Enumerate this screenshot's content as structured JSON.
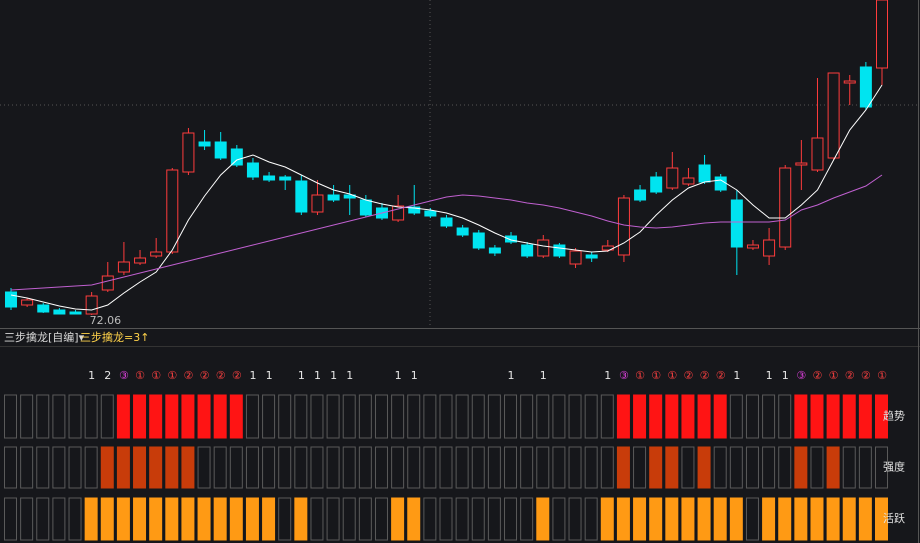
{
  "chart_data": {
    "type": "candlestick",
    "open": [
      74.36,
      73.06,
      73.06,
      72.56,
      72.36,
      72.16,
      74.56,
      76.36,
      77.26,
      77.96,
      78.36,
      86.36,
      89.36,
      89.36,
      88.66,
      87.26,
      85.96,
      85.86,
      85.46,
      82.36,
      84.06,
      84.06,
      83.56,
      82.76,
      81.56,
      82.86,
      82.46,
      81.76,
      80.76,
      80.26,
      78.76,
      79.96,
      79.06,
      77.96,
      79.06,
      77.16,
      78.06,
      78.56,
      78.06,
      84.56,
      85.86,
      84.76,
      85.16,
      87.06,
      85.86,
      83.56,
      78.76,
      77.96,
      78.86,
      87.06,
      86.56,
      87.76,
      95.26,
      96.86,
      96.76
    ],
    "close": [
      72.86,
      73.56,
      72.36,
      72.16,
      72.16,
      73.96,
      75.96,
      77.36,
      77.76,
      78.36,
      86.56,
      90.26,
      88.96,
      87.76,
      87.06,
      85.86,
      85.56,
      85.56,
      82.36,
      84.06,
      83.56,
      83.76,
      82.06,
      81.76,
      82.96,
      82.26,
      81.96,
      80.96,
      80.06,
      78.76,
      78.26,
      79.36,
      77.96,
      79.56,
      77.96,
      78.46,
      77.76,
      78.96,
      83.76,
      83.56,
      84.36,
      86.76,
      85.76,
      85.36,
      84.56,
      78.86,
      79.06,
      79.56,
      86.76,
      87.26,
      89.76,
      96.26,
      95.46,
      92.86,
      103.56
    ],
    "high": [
      74.76,
      73.76,
      73.26,
      72.76,
      72.56,
      74.36,
      77.36,
      79.36,
      78.56,
      79.76,
      86.76,
      90.76,
      90.56,
      90.36,
      89.06,
      87.76,
      86.36,
      86.06,
      86.06,
      85.56,
      85.06,
      85.06,
      84.06,
      83.26,
      84.06,
      85.06,
      82.76,
      82.06,
      81.06,
      80.56,
      79.06,
      80.36,
      79.36,
      80.06,
      79.26,
      78.76,
      78.36,
      79.56,
      84.06,
      85.06,
      86.36,
      88.36,
      86.76,
      88.06,
      86.16,
      84.56,
      79.56,
      80.76,
      87.06,
      89.56,
      95.76,
      96.26,
      96.06,
      97.36,
      103.56
    ],
    "low": [
      72.56,
      72.86,
      72.26,
      72.16,
      72.11,
      72.06,
      74.36,
      76.06,
      77.06,
      77.76,
      78.16,
      86.06,
      88.56,
      87.56,
      86.86,
      85.56,
      85.36,
      84.56,
      82.06,
      82.06,
      83.36,
      82.06,
      81.86,
      81.56,
      81.36,
      82.06,
      81.76,
      80.76,
      79.86,
      78.56,
      77.96,
      79.16,
      77.76,
      77.76,
      77.76,
      76.76,
      77.36,
      78.36,
      77.36,
      83.36,
      84.16,
      84.56,
      84.96,
      85.16,
      84.36,
      76.06,
      78.56,
      77.06,
      78.56,
      84.56,
      86.36,
      87.56,
      93.06,
      92.56,
      95.06
    ],
    "up_color": "#ff3c3c",
    "down_color": "#00e4f0",
    "lines": [
      {
        "color": "#ffffff",
        "values": [
          74.06,
          73.76,
          73.36,
          72.96,
          72.66,
          72.56,
          73.06,
          74.26,
          75.36,
          76.36,
          78.56,
          81.56,
          83.96,
          86.06,
          87.56,
          88.06,
          87.36,
          86.86,
          86.06,
          85.26,
          84.56,
          84.16,
          83.56,
          83.16,
          82.86,
          82.76,
          82.56,
          82.26,
          81.76,
          81.06,
          80.26,
          79.56,
          79.26,
          78.96,
          78.76,
          78.56,
          78.36,
          78.46,
          79.26,
          80.36,
          82.06,
          83.56,
          84.76,
          85.36,
          85.56,
          84.56,
          83.06,
          81.76,
          81.76,
          83.06,
          84.56,
          87.56,
          90.56,
          92.56,
          95.06
        ]
      },
      {
        "color": "#c060d0",
        "values": [
          74.56,
          74.66,
          74.76,
          74.86,
          74.96,
          75.06,
          75.46,
          75.86,
          76.26,
          76.66,
          77.06,
          77.46,
          77.86,
          78.26,
          78.66,
          79.06,
          79.46,
          79.86,
          80.26,
          80.66,
          81.06,
          81.46,
          81.86,
          82.26,
          82.66,
          83.06,
          83.46,
          83.86,
          84.06,
          83.96,
          83.76,
          83.56,
          83.26,
          83.06,
          82.76,
          82.36,
          81.96,
          81.46,
          81.06,
          80.86,
          80.76,
          80.86,
          81.06,
          81.26,
          81.36,
          81.36,
          81.36,
          81.36,
          81.56,
          82.56,
          83.06,
          83.76,
          84.36,
          84.96,
          86.06
        ]
      }
    ],
    "ylim": [
      70.76,
      103.56
    ],
    "grid": true,
    "low_label": "72.06"
  },
  "indicator": {
    "title": "三步擒龙[自编]▾",
    "formula": "三步擒龙=3↑",
    "signals": [
      null,
      null,
      null,
      null,
      null,
      "1",
      "2",
      "③",
      "①",
      "①",
      "①",
      "②",
      "②",
      "②",
      "②",
      "1",
      "1",
      null,
      "1",
      "1",
      "1",
      "1",
      null,
      null,
      "1",
      "1",
      null,
      null,
      null,
      null,
      null,
      "1",
      null,
      "1",
      null,
      null,
      null,
      "1",
      "③",
      "①",
      "①",
      "①",
      "②",
      "②",
      "②",
      "1",
      null,
      "1",
      "1",
      "③",
      "②",
      "①",
      "②",
      "②",
      "①"
    ],
    "rows": [
      {
        "name": "趋势",
        "color": "#ff1414",
        "values": [
          0,
          0,
          0,
          0,
          0,
          0,
          0,
          1,
          1,
          1,
          1,
          1,
          1,
          1,
          1,
          0,
          0,
          0,
          0,
          0,
          0,
          0,
          0,
          0,
          0,
          0,
          0,
          0,
          0,
          0,
          0,
          0,
          0,
          0,
          0,
          0,
          0,
          0,
          1,
          1,
          1,
          1,
          1,
          1,
          1,
          0,
          0,
          0,
          0,
          1,
          1,
          1,
          1,
          1,
          1
        ]
      },
      {
        "name": "强度",
        "color": "#c83c0a",
        "values": [
          0,
          0,
          0,
          0,
          0,
          0,
          1,
          1,
          1,
          1,
          1,
          1,
          0,
          0,
          0,
          0,
          0,
          0,
          0,
          0,
          0,
          0,
          0,
          0,
          0,
          0,
          0,
          0,
          0,
          0,
          0,
          0,
          0,
          0,
          0,
          0,
          0,
          0,
          1,
          0,
          1,
          1,
          0,
          1,
          0,
          0,
          0,
          0,
          0,
          1,
          0,
          1,
          0,
          0,
          0
        ]
      },
      {
        "name": "活跃",
        "color": "#ff9a14",
        "values": [
          0,
          0,
          0,
          0,
          0,
          1,
          1,
          1,
          1,
          1,
          1,
          1,
          1,
          1,
          1,
          1,
          1,
          0,
          1,
          0,
          0,
          0,
          0,
          0,
          1,
          1,
          0,
          0,
          0,
          0,
          0,
          0,
          0,
          1,
          0,
          0,
          0,
          1,
          1,
          1,
          1,
          1,
          1,
          1,
          1,
          1,
          0,
          1,
          1,
          1,
          1,
          1,
          1,
          1,
          1
        ]
      }
    ]
  }
}
